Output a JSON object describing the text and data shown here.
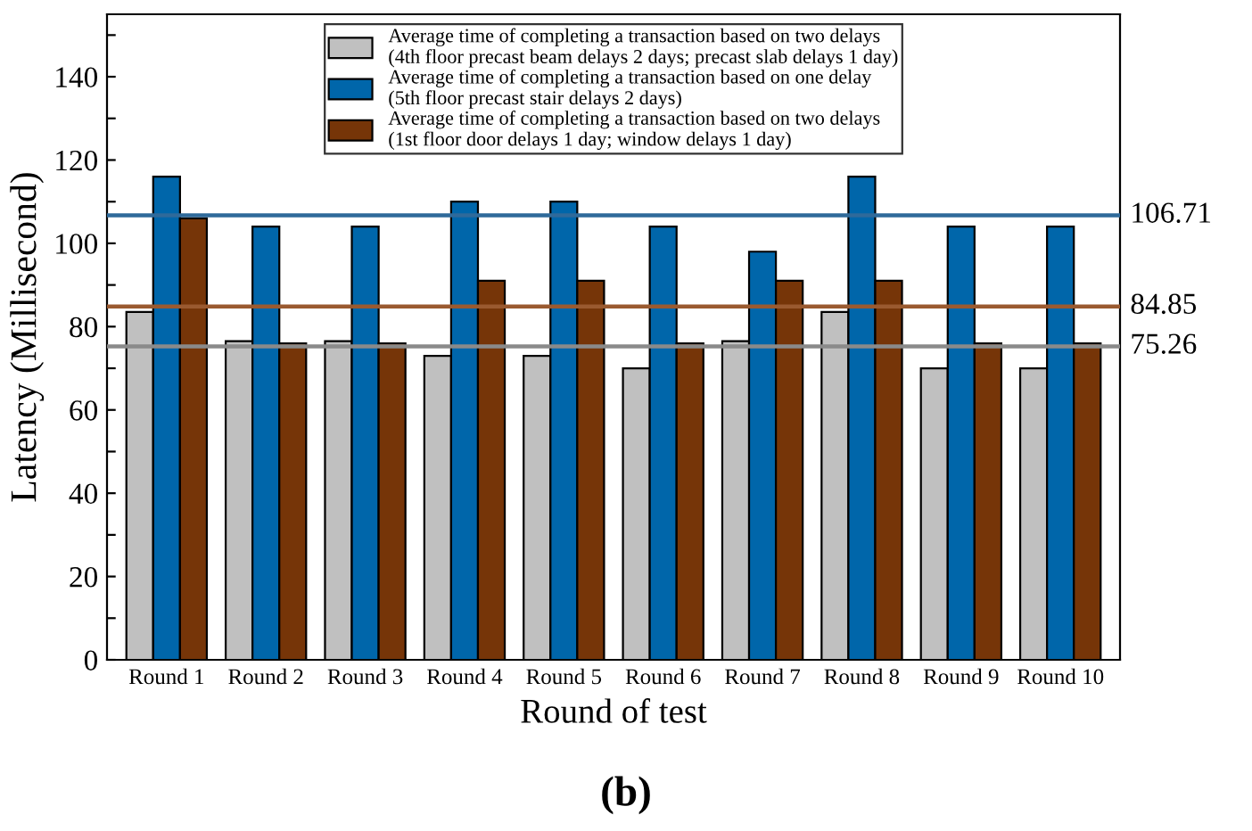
{
  "chart_data": {
    "type": "bar",
    "xlabel": "Round of test",
    "ylabel": "Latency (Millisecond)",
    "categories": [
      "Round 1",
      "Round 2",
      "Round 3",
      "Round 4",
      "Round 5",
      "Round 6",
      "Round 7",
      "Round 8",
      "Round 9",
      "Round 10"
    ],
    "series": [
      {
        "name": "Average time of completing a transaction based on two delays\n(4th floor precast beam delays 2 days; precast slab delays 1 day)",
        "color": "#c0c0c0",
        "values": [
          83.5,
          76.5,
          76.5,
          73,
          73,
          70,
          76.5,
          83.5,
          70,
          70
        ]
      },
      {
        "name": "Average time of completing a transaction based on one delay\n(5th floor precast stair delays 2 days)",
        "color": "#0066aa",
        "values": [
          116,
          104,
          104,
          110,
          110,
          104,
          98,
          116,
          104,
          104
        ]
      },
      {
        "name": "Average time of completing a transaction based on two delays\n(1st floor door delays 1 day; window delays 1 day)",
        "color": "#763508",
        "values": [
          106,
          76,
          76,
          91,
          91,
          76,
          91,
          91,
          76,
          76
        ]
      }
    ],
    "ylim": [
      0,
      155
    ],
    "yticks": [
      0,
      {
        "value": 10,
        "label": null
      },
      20,
      {
        "value": 30,
        "label": null
      },
      40,
      {
        "value": 50,
        "label": null
      },
      60,
      {
        "value": 70,
        "label": null
      },
      80,
      {
        "value": 90,
        "label": null
      },
      100,
      {
        "value": 110,
        "label": null
      },
      120,
      {
        "value": 130,
        "label": null
      },
      140,
      {
        "value": 150,
        "label": null
      }
    ],
    "ref_lines": [
      {
        "axis": "y",
        "value": 106.71,
        "label": "106.71",
        "color": "#2f6a9a"
      },
      {
        "axis": "y",
        "value": 84.85,
        "label": "84.85",
        "color": "#9a5a30"
      },
      {
        "axis": "y",
        "value": 75.26,
        "label": "75.26",
        "color": "#8a8a8a"
      }
    ],
    "annotations": [
      "(b)"
    ],
    "legend": "top",
    "grid": false
  }
}
